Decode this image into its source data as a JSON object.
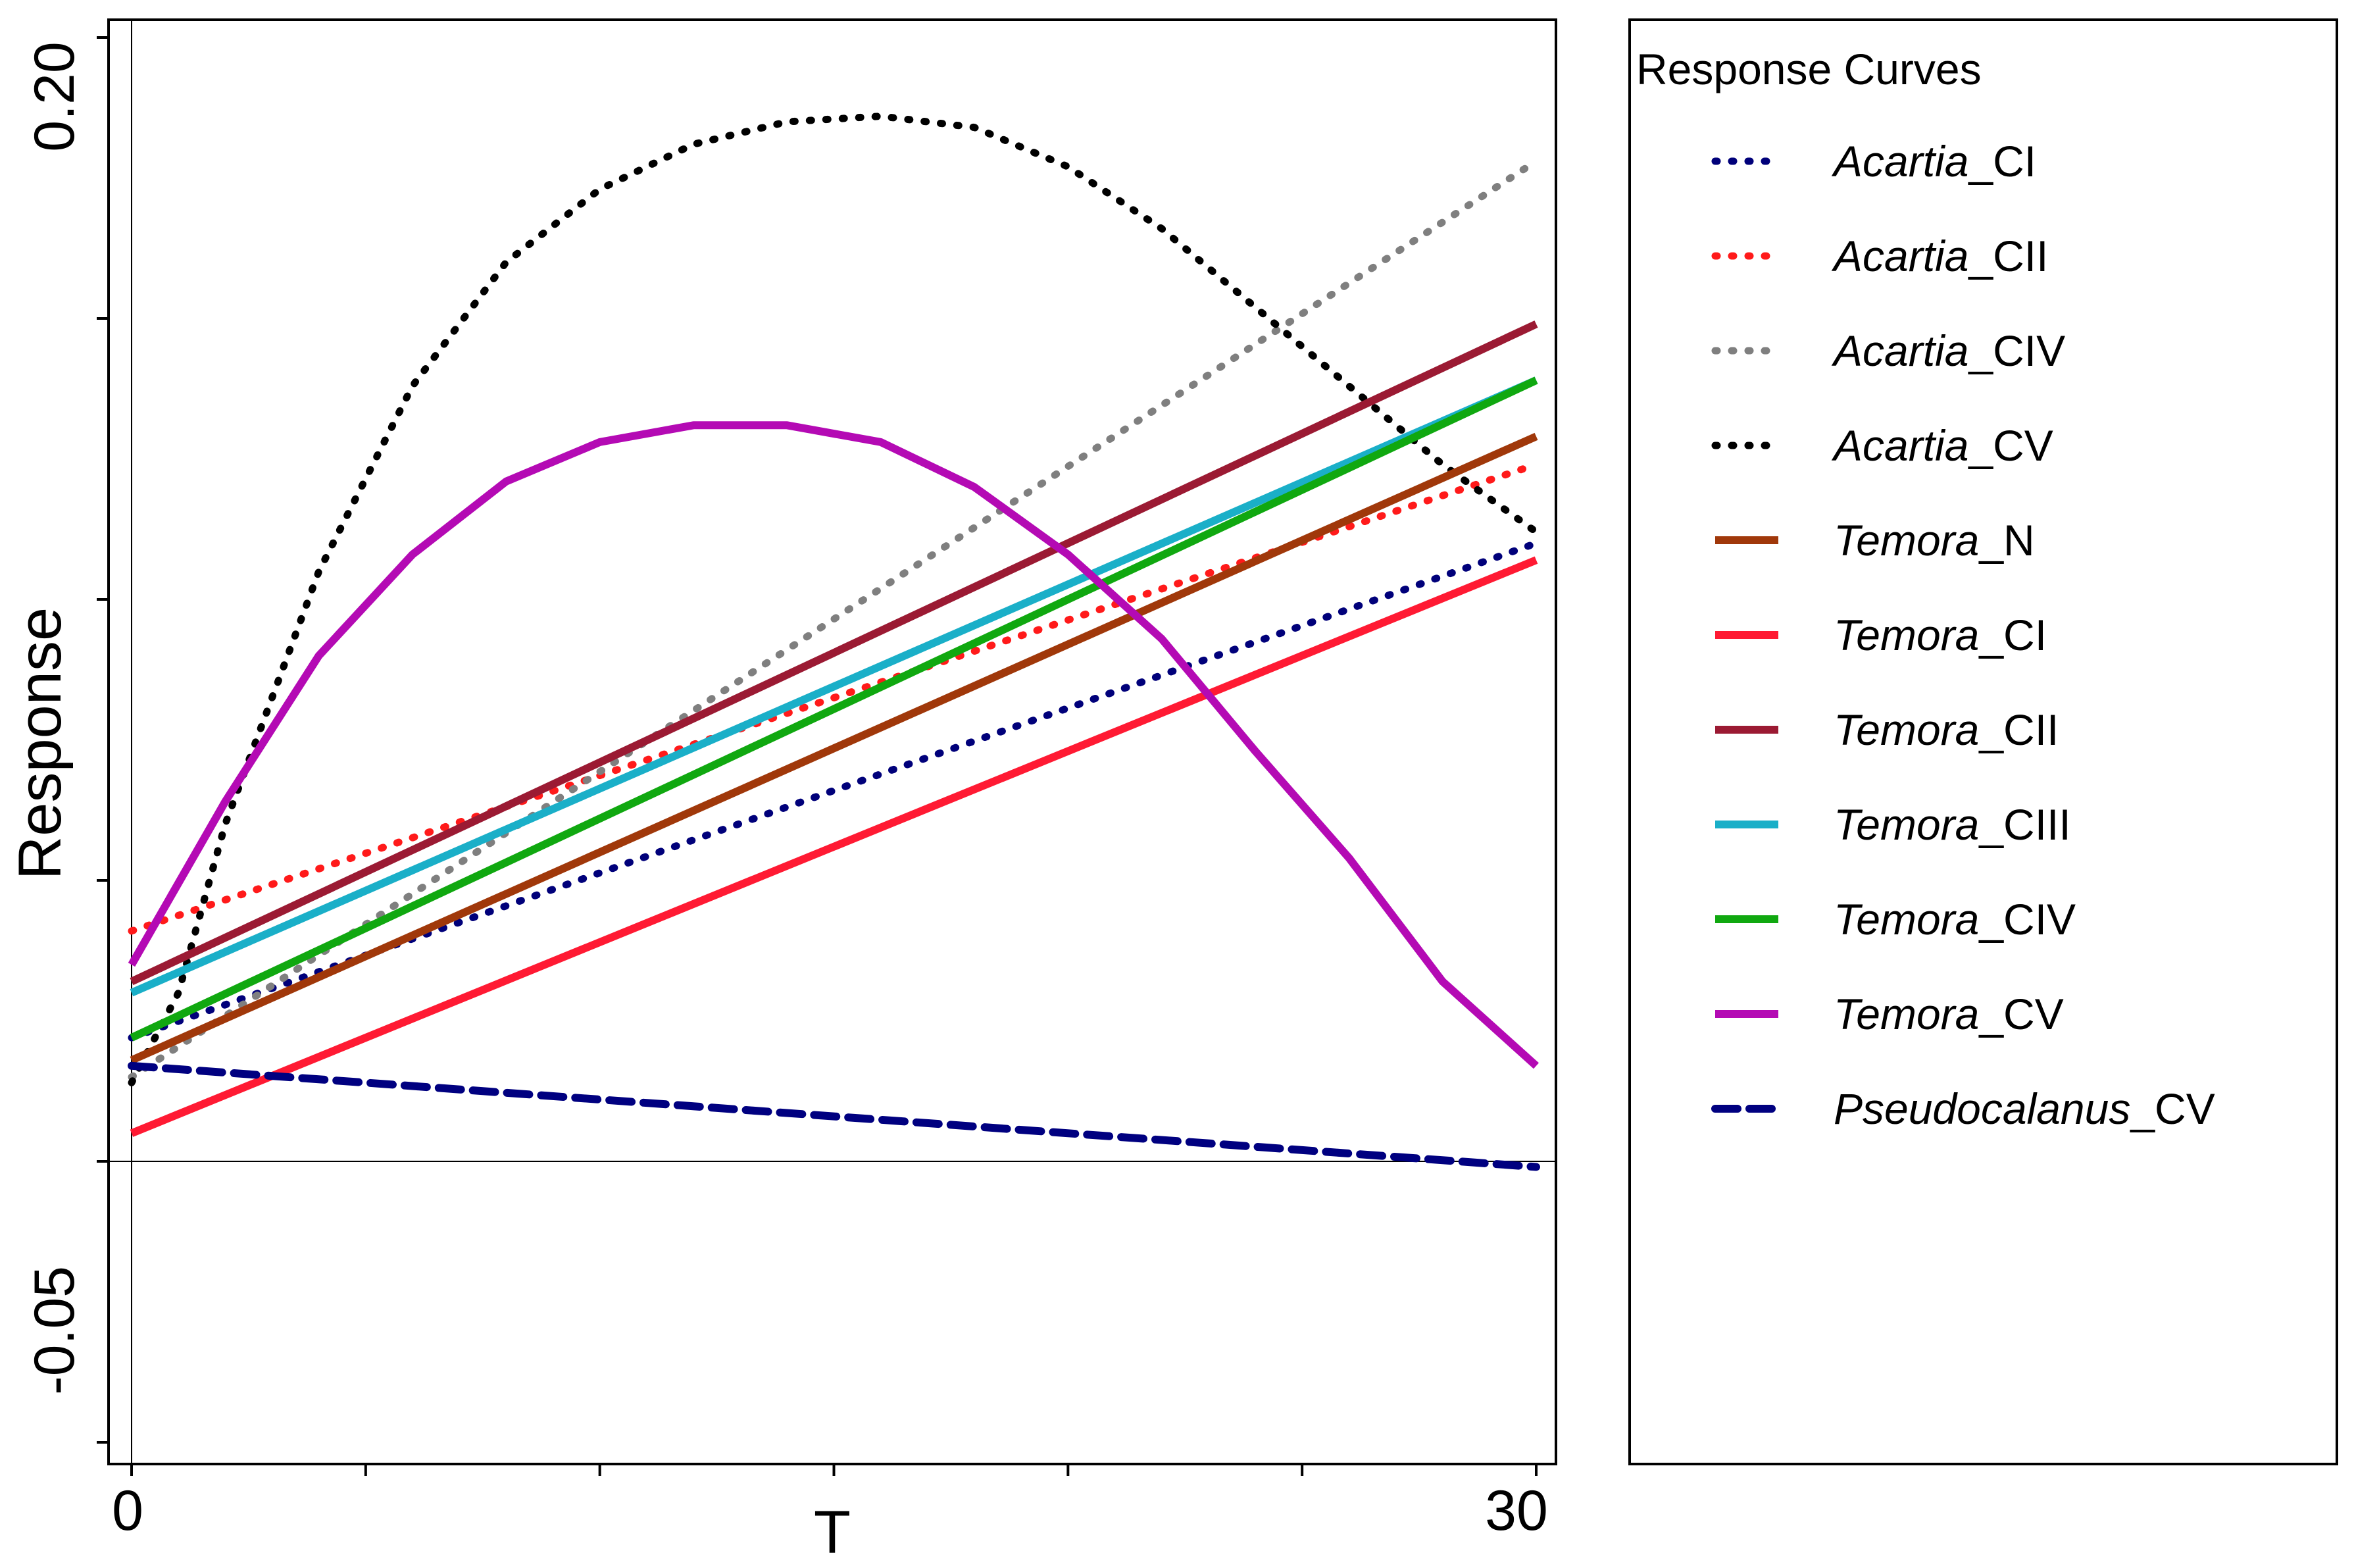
{
  "chart_data": {
    "type": "line",
    "title": "",
    "xlabel": "T",
    "ylabel": "Response",
    "xlim": [
      0,
      30
    ],
    "ylim": [
      -0.05,
      0.2
    ],
    "x_tick_labels": [
      "0",
      "30"
    ],
    "y_tick_labels": [
      "-0.05",
      "0.20"
    ],
    "x_minor_ticks": [
      0,
      5,
      10,
      15,
      20,
      25,
      30
    ],
    "y_minor_ticks": [
      -0.05,
      0,
      0.05,
      0.1,
      0.15,
      0.2
    ],
    "reference_lines": {
      "x": 0,
      "y": 0
    },
    "grid": false,
    "legend": {
      "title": "Response Curves",
      "placement": "right-outside"
    },
    "x": [
      0,
      30
    ],
    "series": [
      {
        "name": "Acartia_CI",
        "genus": "Acartia",
        "suffix": "_CI",
        "style": "dotted",
        "color": "#00007a",
        "shape": "linear",
        "values": [
          0.022,
          0.11
        ]
      },
      {
        "name": "Acartia_CII",
        "genus": "Acartia",
        "suffix": "_CII",
        "style": "dotted",
        "color": "#ff1a1a",
        "shape": "linear",
        "values": [
          0.041,
          0.124
        ]
      },
      {
        "name": "Acartia_CIV",
        "genus": "Acartia",
        "suffix": "_CIV",
        "style": "dotted",
        "color": "#7f7f7f",
        "shape": "linear",
        "values": [
          0.015,
          0.178
        ]
      },
      {
        "name": "Acartia_CV",
        "genus": "Acartia",
        "suffix": "_CV",
        "style": "dotted",
        "color": "#000000",
        "shape": "curve",
        "points": [
          [
            0,
            0.014
          ],
          [
            1,
            0.03
          ],
          [
            2,
            0.06
          ],
          [
            4,
            0.105
          ],
          [
            6,
            0.138
          ],
          [
            8,
            0.16
          ],
          [
            10,
            0.173
          ],
          [
            12,
            0.181
          ],
          [
            14,
            0.185
          ],
          [
            16,
            0.186
          ],
          [
            18,
            0.184
          ],
          [
            20,
            0.177
          ],
          [
            22,
            0.166
          ],
          [
            24,
            0.152
          ],
          [
            26,
            0.138
          ],
          [
            28,
            0.124
          ],
          [
            29,
            0.118
          ],
          [
            30,
            0.112
          ]
        ]
      },
      {
        "name": "Temora_N",
        "genus": "Temora",
        "suffix": "_N",
        "style": "solid",
        "color": "#a0380a",
        "shape": "linear",
        "values": [
          0.018,
          0.129
        ]
      },
      {
        "name": "Temora_CI",
        "genus": "Temora",
        "suffix": "_CI",
        "style": "solid",
        "color": "#ff1a33",
        "shape": "linear",
        "values": [
          0.005,
          0.107
        ]
      },
      {
        "name": "Temora_CII",
        "genus": "Temora",
        "suffix": "_CII",
        "style": "solid",
        "color": "#9b1a33",
        "shape": "linear",
        "values": [
          0.032,
          0.149
        ]
      },
      {
        "name": "Temora_CIII",
        "genus": "Temora",
        "suffix": "_CIII",
        "style": "solid",
        "color": "#1aafc8",
        "shape": "linear",
        "values": [
          0.03,
          0.139
        ]
      },
      {
        "name": "Temora_CIV",
        "genus": "Temora",
        "suffix": "_CIV",
        "style": "solid",
        "color": "#10a810",
        "shape": "linear",
        "values": [
          0.022,
          0.139
        ]
      },
      {
        "name": "Temora_CV",
        "genus": "Temora",
        "suffix": "_CV",
        "style": "solid",
        "color": "#b40ab4",
        "shape": "curve",
        "points": [
          [
            0,
            0.035
          ],
          [
            2,
            0.064
          ],
          [
            4,
            0.09
          ],
          [
            6,
            0.108
          ],
          [
            8,
            0.121
          ],
          [
            10,
            0.128
          ],
          [
            12,
            0.131
          ],
          [
            14,
            0.131
          ],
          [
            16,
            0.128
          ],
          [
            18,
            0.12
          ],
          [
            20,
            0.108
          ],
          [
            22,
            0.093
          ],
          [
            24,
            0.073
          ],
          [
            26,
            0.054
          ],
          [
            28,
            0.032
          ],
          [
            30,
            0.017
          ]
        ]
      },
      {
        "name": "Pseudocalanus_CV",
        "genus": "Pseudocalanus",
        "suffix": "_CV",
        "style": "dashed",
        "color": "#000080",
        "shape": "linear",
        "values": [
          0.017,
          -0.001
        ]
      }
    ]
  }
}
